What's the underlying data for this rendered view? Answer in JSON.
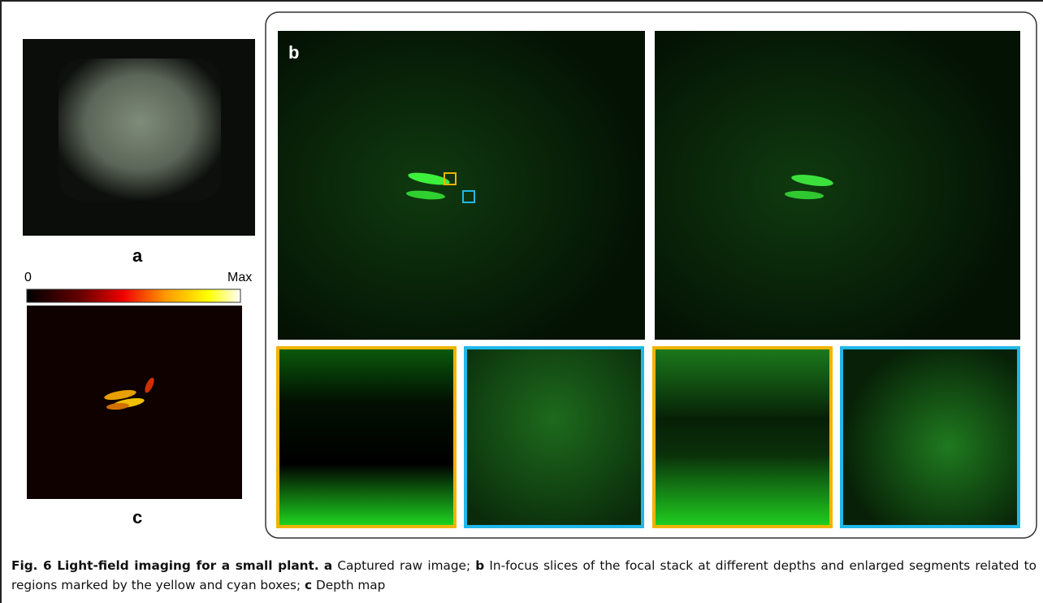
{
  "panels": {
    "a": {
      "label": "a"
    },
    "b": {
      "label": "b"
    },
    "c": {
      "label": "c"
    }
  },
  "colorbar": {
    "min_label": "0",
    "max_label": "Max"
  },
  "caption": {
    "title": "Fig. 6 Light-field imaging for a small plant.",
    "parts": [
      {
        "key": "a",
        "text": "Captured raw image;"
      },
      {
        "key": "b",
        "text": "In-focus slices of the focal stack at different depths and enlarged segments related to regions marked by the yellow and cyan boxes;"
      },
      {
        "key": "c",
        "text": "Depth map"
      }
    ]
  }
}
